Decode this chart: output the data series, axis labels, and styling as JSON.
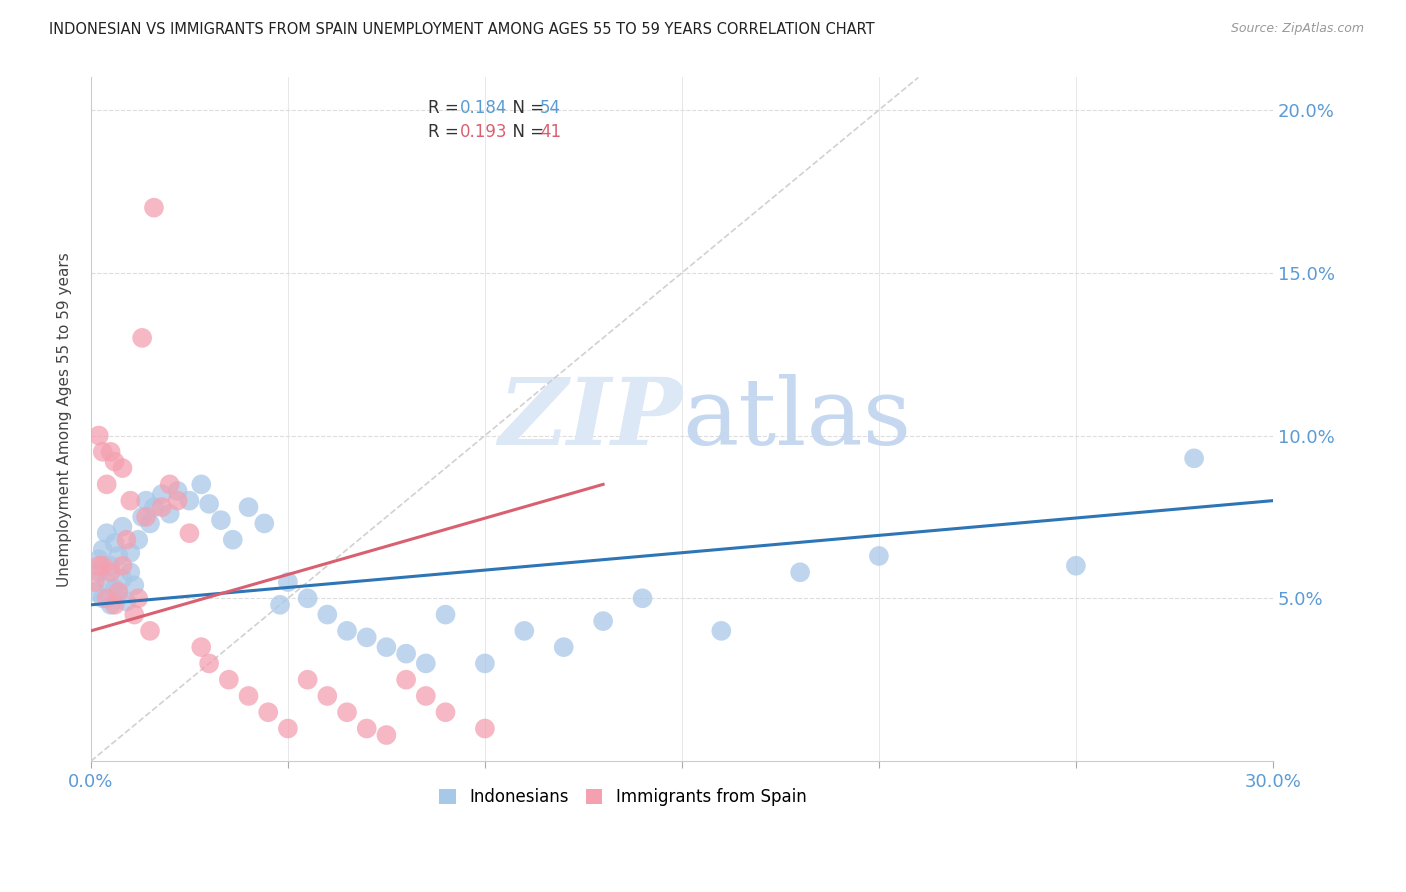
{
  "title": "INDONESIAN VS IMMIGRANTS FROM SPAIN UNEMPLOYMENT AMONG AGES 55 TO 59 YEARS CORRELATION CHART",
  "source": "Source: ZipAtlas.com",
  "ylabel": "Unemployment Among Ages 55 to 59 years",
  "xlim": [
    0.0,
    0.3
  ],
  "ylim": [
    0.0,
    0.21
  ],
  "xticks": [
    0.0,
    0.05,
    0.1,
    0.15,
    0.2,
    0.25,
    0.3
  ],
  "yticks": [
    0.05,
    0.1,
    0.15,
    0.2
  ],
  "ytick_labels": [
    "5.0%",
    "10.0%",
    "15.0%",
    "20.0%"
  ],
  "xtick_labels": [
    "0.0%",
    "",
    "",
    "",
    "",
    "",
    "30.0%"
  ],
  "axis_color": "#5b9bd5",
  "indonesian_color": "#a8c8e8",
  "spain_color": "#f4a0b0",
  "indonesian_line_color": "#2e75b6",
  "spain_line_color": "#d96070",
  "diagonal_color": "#cccccc",
  "indonesian_scatter_x": [
    0.001,
    0.002,
    0.002,
    0.003,
    0.003,
    0.004,
    0.004,
    0.005,
    0.005,
    0.006,
    0.006,
    0.007,
    0.007,
    0.008,
    0.008,
    0.009,
    0.01,
    0.01,
    0.011,
    0.012,
    0.013,
    0.014,
    0.015,
    0.016,
    0.018,
    0.02,
    0.022,
    0.025,
    0.028,
    0.03,
    0.033,
    0.036,
    0.04,
    0.044,
    0.048,
    0.05,
    0.055,
    0.06,
    0.065,
    0.07,
    0.075,
    0.08,
    0.085,
    0.09,
    0.1,
    0.11,
    0.12,
    0.13,
    0.14,
    0.16,
    0.18,
    0.2,
    0.25,
    0.28
  ],
  "indonesian_scatter_y": [
    0.052,
    0.058,
    0.062,
    0.05,
    0.065,
    0.055,
    0.07,
    0.048,
    0.06,
    0.053,
    0.067,
    0.051,
    0.063,
    0.056,
    0.072,
    0.049,
    0.058,
    0.064,
    0.054,
    0.068,
    0.075,
    0.08,
    0.073,
    0.078,
    0.082,
    0.076,
    0.083,
    0.08,
    0.085,
    0.079,
    0.074,
    0.068,
    0.078,
    0.073,
    0.048,
    0.055,
    0.05,
    0.045,
    0.04,
    0.038,
    0.035,
    0.033,
    0.03,
    0.045,
    0.03,
    0.04,
    0.035,
    0.043,
    0.05,
    0.04,
    0.058,
    0.063,
    0.06,
    0.093
  ],
  "spain_scatter_x": [
    0.001,
    0.002,
    0.002,
    0.003,
    0.003,
    0.004,
    0.004,
    0.005,
    0.005,
    0.006,
    0.006,
    0.007,
    0.008,
    0.008,
    0.009,
    0.01,
    0.011,
    0.012,
    0.013,
    0.014,
    0.015,
    0.016,
    0.018,
    0.02,
    0.022,
    0.025,
    0.028,
    0.03,
    0.035,
    0.04,
    0.045,
    0.05,
    0.055,
    0.06,
    0.065,
    0.07,
    0.075,
    0.08,
    0.085,
    0.09,
    0.1
  ],
  "spain_scatter_y": [
    0.055,
    0.1,
    0.06,
    0.095,
    0.06,
    0.05,
    0.085,
    0.058,
    0.095,
    0.092,
    0.048,
    0.052,
    0.06,
    0.09,
    0.068,
    0.08,
    0.045,
    0.05,
    0.13,
    0.075,
    0.04,
    0.17,
    0.078,
    0.085,
    0.08,
    0.07,
    0.035,
    0.03,
    0.025,
    0.02,
    0.015,
    0.01,
    0.025,
    0.02,
    0.015,
    0.01,
    0.008,
    0.025,
    0.02,
    0.015,
    0.01
  ],
  "watermark_zip": "ZIP",
  "watermark_atlas": "atlas",
  "background_color": "#ffffff",
  "grid_color": "#dddddd",
  "legend_R1_val": "0.184",
  "legend_N1_val": "54",
  "legend_R2_val": "0.193",
  "legend_N2_val": "41",
  "legend_val_color": "#5b9bd5",
  "legend_spain_val_color": "#d96070"
}
